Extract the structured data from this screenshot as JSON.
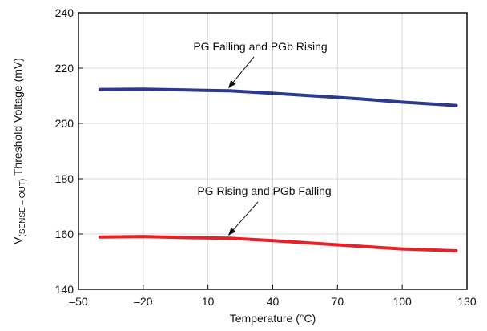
{
  "chart_data": {
    "type": "line",
    "title": "",
    "xlabel": "Temperature (°C)",
    "ylabel": {
      "prefix": "V",
      "subscript": "(SENSE – OUT)",
      "suffix": " Threshold Voltage (mV)"
    },
    "xlim": [
      -50,
      130
    ],
    "ylim": [
      140,
      240
    ],
    "xticks": [
      -50,
      -20,
      10,
      40,
      70,
      100,
      130
    ],
    "yticks": [
      140,
      160,
      180,
      200,
      220,
      240
    ],
    "xtick_labels": [
      "–50",
      "–20",
      "10",
      "40",
      "70",
      "100",
      "130"
    ],
    "ytick_labels": [
      "140",
      "160",
      "180",
      "200",
      "220",
      "240"
    ],
    "grid": true,
    "series": [
      {
        "name": "PG Falling and PGb Rising",
        "color": "#2b3a8f",
        "points": [
          [
            -40,
            212.3
          ],
          [
            -20,
            212.4
          ],
          [
            0,
            212.1
          ],
          [
            20,
            211.8
          ],
          [
            40,
            210.9
          ],
          [
            60,
            209.9
          ],
          [
            80,
            208.9
          ],
          [
            100,
            207.7
          ],
          [
            125,
            206.5
          ]
        ]
      },
      {
        "name": "PG Rising and PGb Falling",
        "color": "#e8202a",
        "points": [
          [
            -40,
            158.9
          ],
          [
            -20,
            159.1
          ],
          [
            0,
            158.7
          ],
          [
            20,
            158.5
          ],
          [
            40,
            157.6
          ],
          [
            60,
            156.6
          ],
          [
            80,
            155.6
          ],
          [
            100,
            154.6
          ],
          [
            125,
            153.9
          ]
        ]
      }
    ],
    "annotations": [
      {
        "text": "PG Falling and PGb Rising",
        "series": 0,
        "point": [
          20,
          211.8
        ]
      },
      {
        "text": "PG Rising and PGb Falling",
        "series": 1,
        "point": [
          20,
          158.5
        ]
      }
    ]
  }
}
